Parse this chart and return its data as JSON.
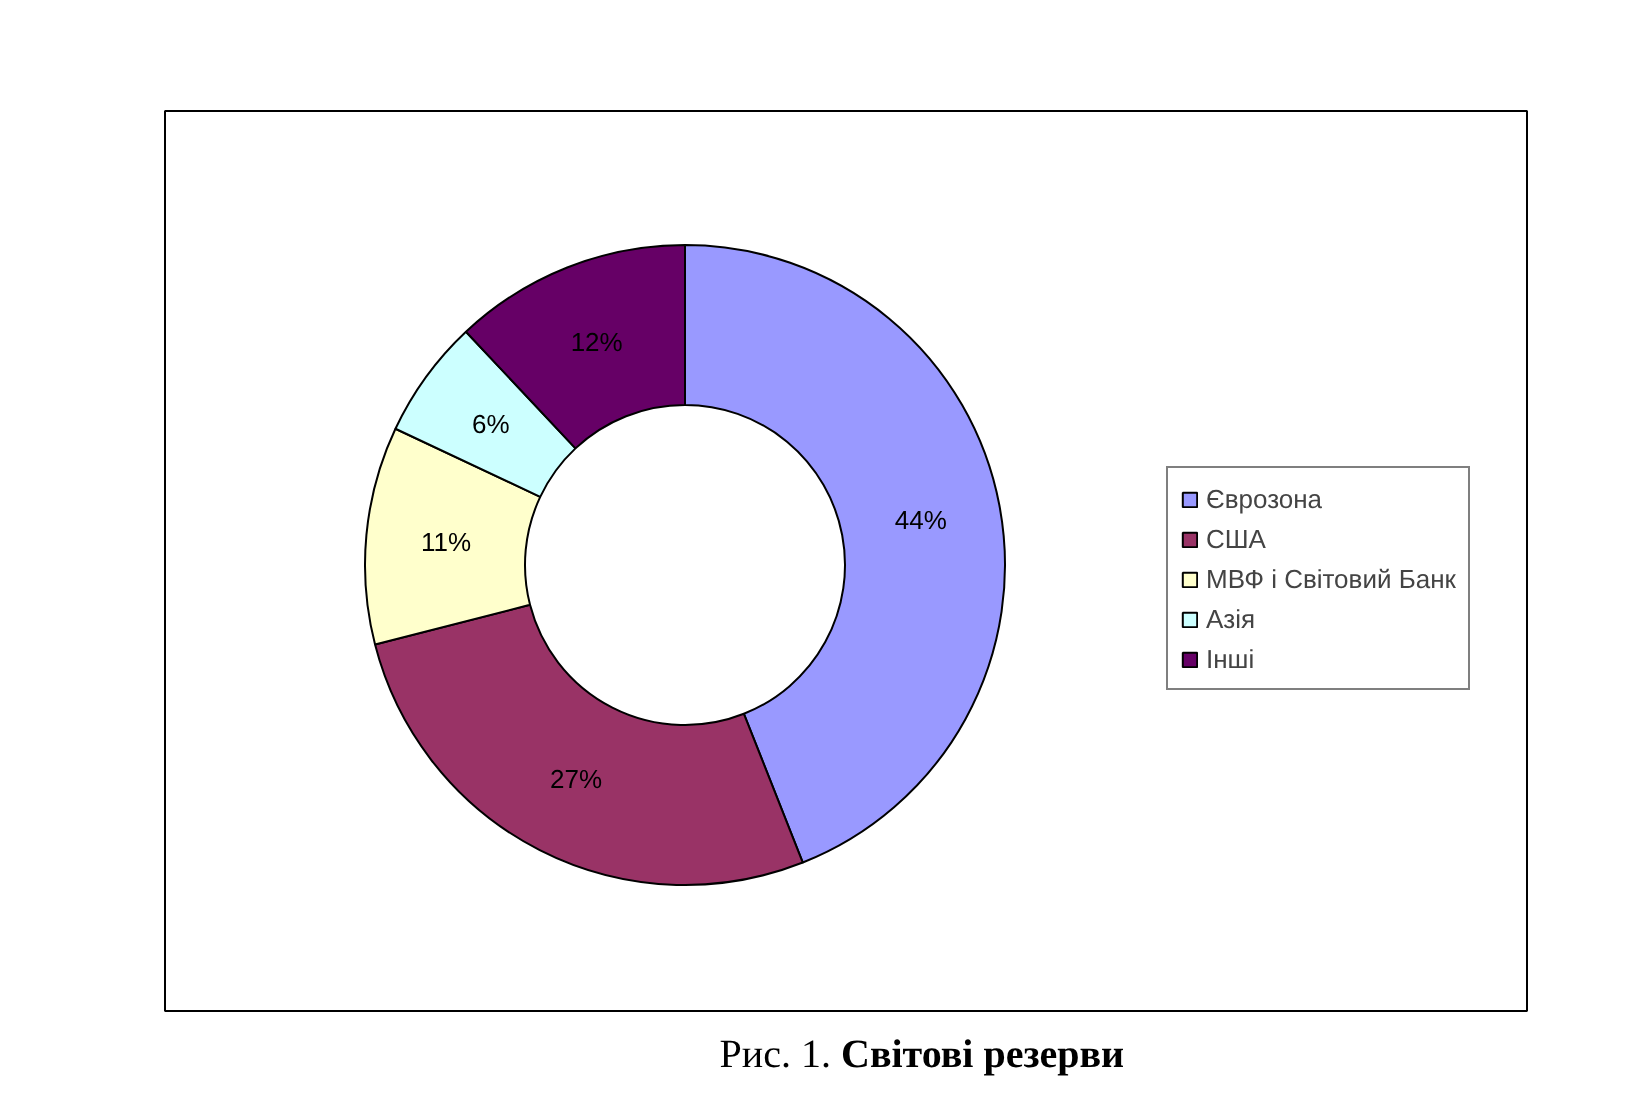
{
  "chart_data": {
    "type": "donut",
    "title": "Рис. 1. Світові резерви",
    "categories": [
      "Єврозона",
      "США",
      "МВФ і Світовий Банк",
      "Азія",
      "Інші"
    ],
    "values": [
      44,
      27,
      11,
      6,
      12
    ],
    "value_labels": [
      "44%",
      "27%",
      "11%",
      "6%",
      "12%"
    ],
    "data_labels": true,
    "colors": [
      "#9999ff",
      "#993366",
      "#ffffcc",
      "#ccffff",
      "#660066"
    ],
    "legend": "right"
  }
}
